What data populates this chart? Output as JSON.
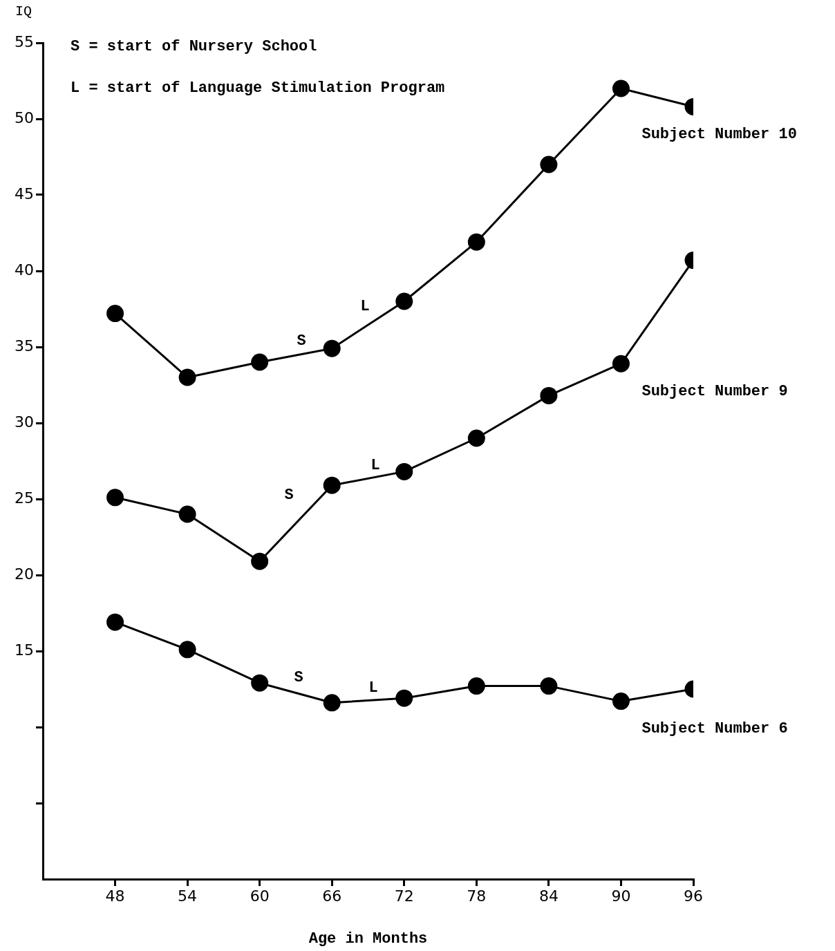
{
  "chart_data": {
    "type": "line",
    "xlabel": "Age in Months",
    "ylabel": "IQ",
    "x": [
      48,
      54,
      60,
      66,
      72,
      78,
      84,
      90,
      96
    ],
    "xlim": [
      42,
      96
    ],
    "xticks": [
      48,
      54,
      60,
      66,
      72,
      78,
      84,
      90,
      96
    ],
    "ylim": [
      0,
      55
    ],
    "yticks": [
      55,
      50,
      45,
      40,
      35,
      30,
      25,
      20,
      15,
      {
        "value": 10,
        "label": null
      },
      {
        "value": 5,
        "label": null
      }
    ],
    "grid": false,
    "legend": false,
    "marker": "circle",
    "line_style": "solid",
    "series": [
      {
        "name": "Subject Number 10",
        "color": "#000000",
        "values": [
          37.2,
          33.0,
          34.0,
          34.9,
          38.0,
          41.9,
          47.0,
          52.0,
          50.8
        ]
      },
      {
        "name": "Subject Number 9",
        "color": "#000000",
        "values": [
          25.1,
          24.0,
          20.9,
          25.9,
          26.8,
          29.0,
          31.8,
          33.9,
          40.7
        ]
      },
      {
        "name": "Subject Number 6",
        "color": "#000000",
        "values": [
          16.9,
          15.1,
          12.9,
          11.6,
          11.9,
          12.7,
          12.7,
          11.7,
          12.5
        ]
      }
    ],
    "annotations": [
      "S = start of Nursery School",
      "L = start of Language Stimulation Program",
      "S",
      "L",
      "S",
      "L",
      "S",
      "L"
    ]
  }
}
